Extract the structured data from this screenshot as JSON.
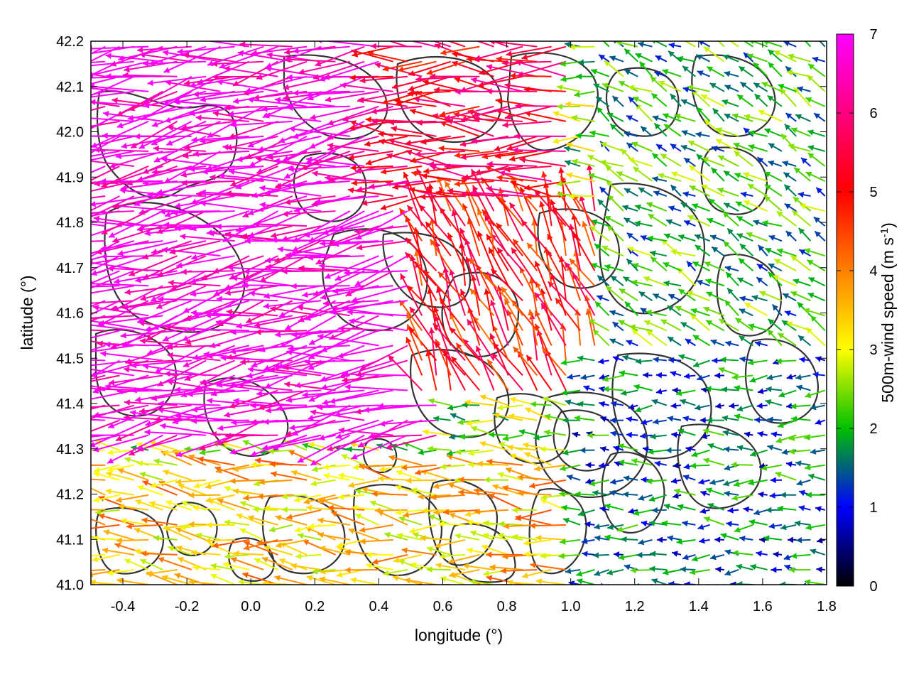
{
  "chart_data": {
    "type": "vector-field",
    "title": "",
    "xlabel": "longitude (°)",
    "ylabel": "latitude (°)",
    "xlim": [
      -0.5,
      1.8
    ],
    "ylim": [
      41.0,
      42.2
    ],
    "xticks": [
      "-0.4",
      "-0.2",
      "0.0",
      "0.2",
      "0.4",
      "0.6",
      "0.8",
      "1.0",
      "1.2",
      "1.4",
      "1.6",
      "1.8"
    ],
    "yticks": [
      "41.0",
      "41.1",
      "41.2",
      "41.3",
      "41.4",
      "41.5",
      "41.6",
      "41.7",
      "41.8",
      "41.9",
      "42.0",
      "42.1",
      "42.2"
    ],
    "colorbar": {
      "label": "500m-wind speed (m s-1)",
      "range": [
        0,
        7
      ],
      "ticks": [
        "0",
        "1",
        "2",
        "3",
        "4",
        "5",
        "6",
        "7"
      ],
      "colors": [
        "#000000",
        "#0000ff",
        "#00c000",
        "#ffff00",
        "#ff8000",
        "#ff0000",
        "#ff00ff"
      ]
    },
    "contours": "dark grey terrain contours",
    "wind_regions": [
      {
        "name": "strong westward flow, NW sector",
        "lon": [
          -0.5,
          0.6
        ],
        "lat": [
          41.3,
          42.2
        ],
        "speed": 7.0,
        "dir_deg": 190
      },
      {
        "name": "westward flow, northern band",
        "lon": [
          0.4,
          1.0
        ],
        "lat": [
          41.85,
          42.2
        ],
        "speed": 5.5,
        "dir_deg": 178
      },
      {
        "name": "northwestward turning flow, center",
        "lon": [
          0.5,
          1.1
        ],
        "lat": [
          41.4,
          41.85
        ],
        "speed": 5.0,
        "dir_deg": 115
      },
      {
        "name": "weak variable flow, NE sector",
        "lon": [
          1.1,
          1.8
        ],
        "lat": [
          41.5,
          42.2
        ],
        "speed": 2.0,
        "dir_deg": 150
      },
      {
        "name": "easterly flow, SE sector",
        "lon": [
          1.0,
          1.8
        ],
        "lat": [
          41.0,
          41.5
        ],
        "speed": 1.5,
        "dir_deg": 180
      },
      {
        "name": "westward flow, southern band",
        "lon": [
          -0.5,
          1.0
        ],
        "lat": [
          41.0,
          41.28
        ],
        "speed": 3.5,
        "dir_deg": 175
      }
    ]
  }
}
